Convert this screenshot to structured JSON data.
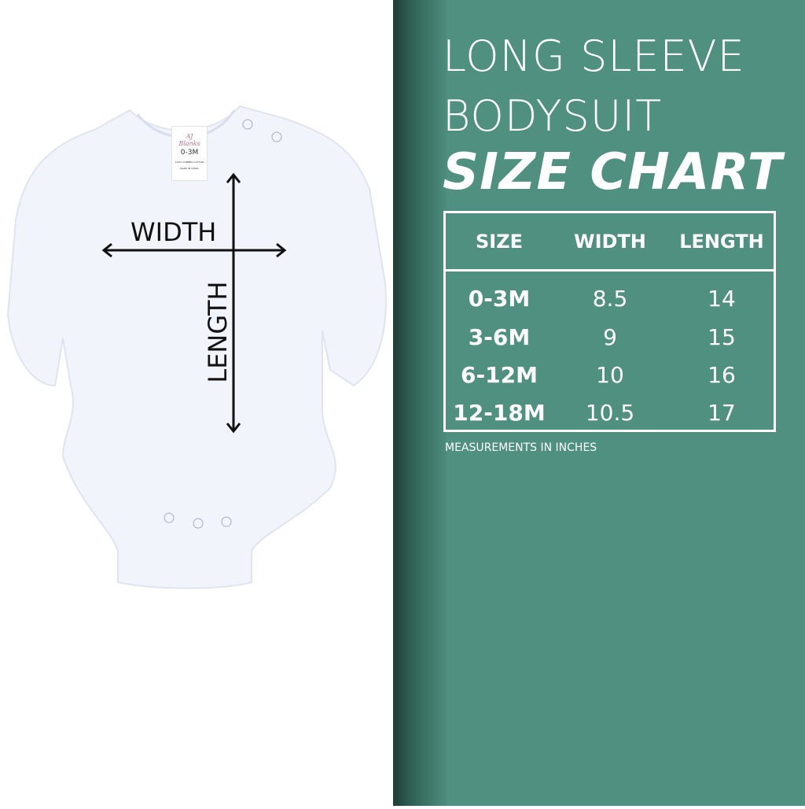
{
  "title_line1": "LONG SLEEVE",
  "title_line2": "BODYSUIT",
  "title_line3": "SIZE CHART",
  "table": {
    "headers": [
      "SIZE",
      "WIDTH",
      "LENGTH"
    ],
    "rows": [
      {
        "size": "0-3M",
        "width": "8.5",
        "length": "14"
      },
      {
        "size": "3-6M",
        "width": "9",
        "length": "15"
      },
      {
        "size": "6-12M",
        "width": "10",
        "length": "16"
      },
      {
        "size": "12-18M",
        "width": "10.5",
        "length": "17"
      }
    ]
  },
  "note": "MEASUREMENTS IN INCHES",
  "diagram": {
    "width_label": "WIDTH",
    "length_label": "LENGTH"
  },
  "garment_tag": {
    "brand": "AJ Blanks",
    "size": "0-3M",
    "material": "100% COMBED COTTON",
    "origin": "MADE IN CHINA"
  },
  "colors": {
    "background": "#4f9080",
    "text": "#ffffff"
  }
}
